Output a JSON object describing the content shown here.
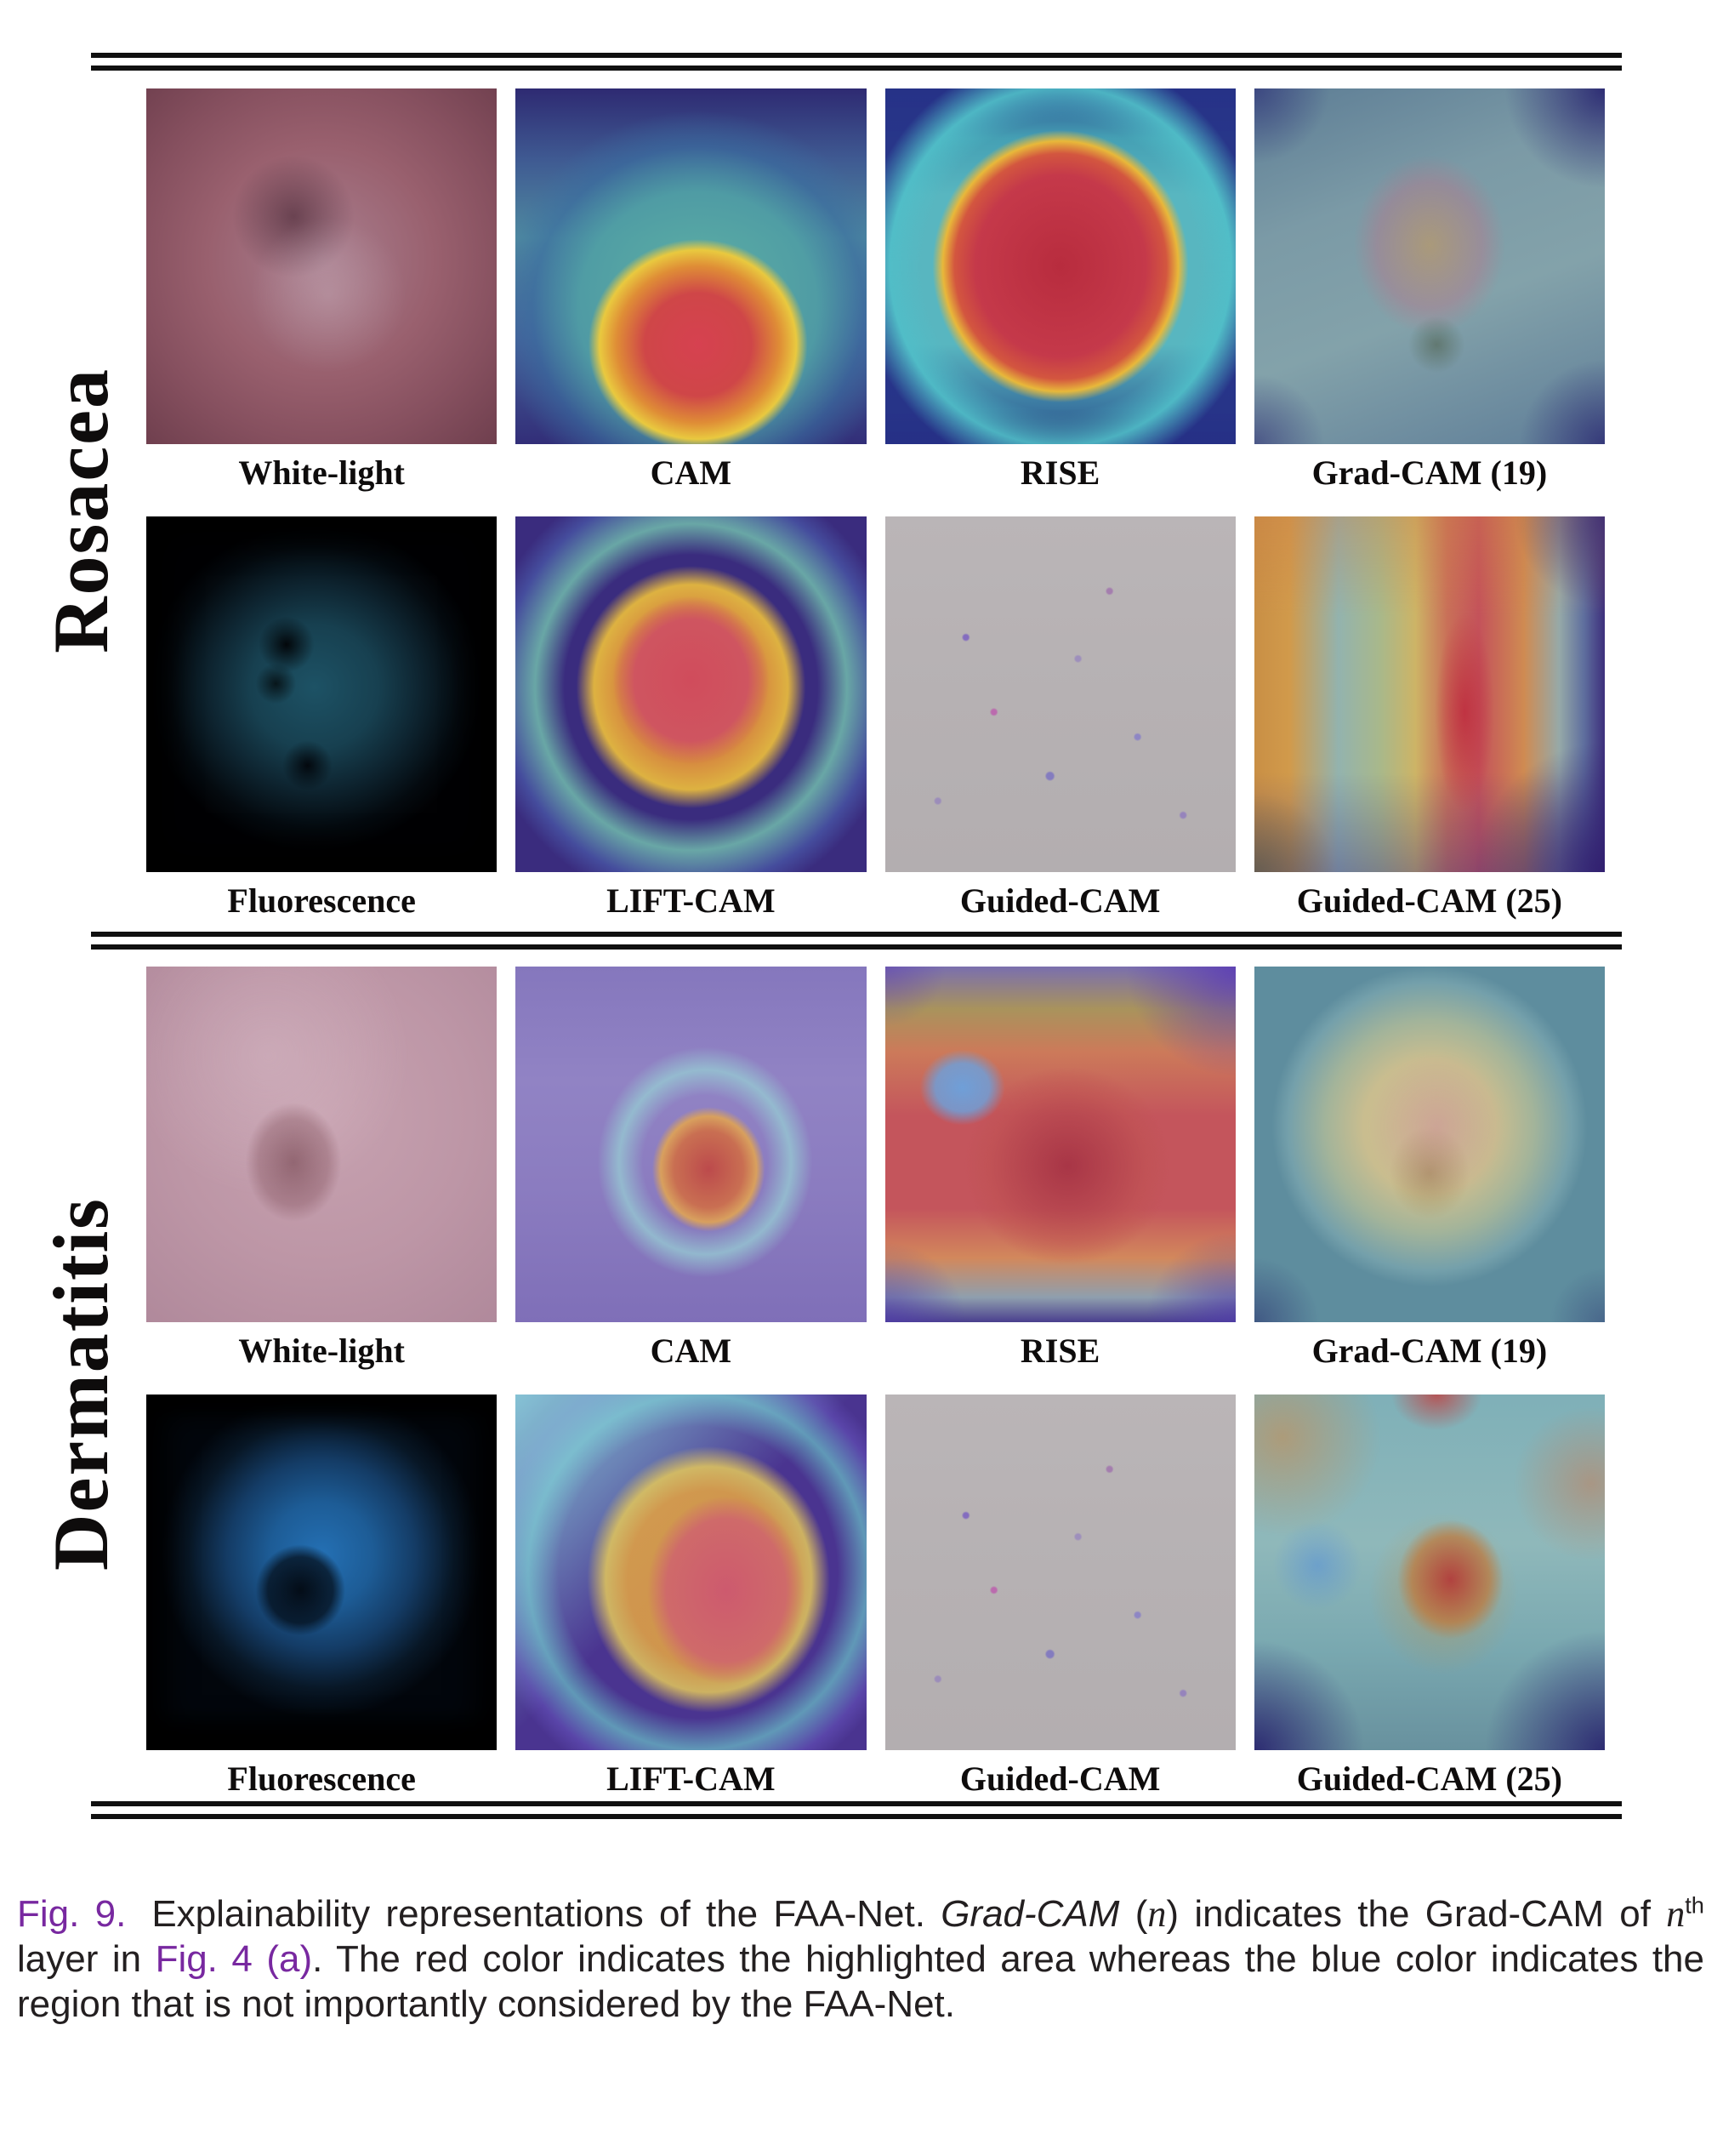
{
  "sections": [
    {
      "label": "Rosacea",
      "rows": [
        {
          "cells": [
            "White-light",
            "CAM",
            "RISE",
            "Grad-CAM (19)"
          ]
        },
        {
          "cells": [
            "Fluorescence",
            "LIFT-CAM",
            "Guided-CAM",
            "Guided-CAM (25)"
          ]
        }
      ]
    },
    {
      "label": "Dermatitis",
      "rows": [
        {
          "cells": [
            "White-light",
            "CAM",
            "RISE",
            "Grad-CAM (19)"
          ]
        },
        {
          "cells": [
            "Fluorescence",
            "LIFT-CAM",
            "Guided-CAM",
            "Guided-CAM (25)"
          ]
        }
      ]
    }
  ],
  "caption": {
    "fig_label": "Fig. 9.",
    "intro": "Explainability representations of the FAA-Net. ",
    "gradcam_italic": "Grad-CAM",
    "paren_open": " (",
    "n_italic": "n",
    "paren_close": ")",
    "middle": " indicates the Grad-CAM of ",
    "n2": "n",
    "sup": "th",
    "layer_in": " layer in ",
    "fig4_ref": "Fig. 4 (a)",
    "tail": ". The red color indicates the highlighted area whereas the blue color indicates the region that is not importantly considered by the FAA-Net."
  },
  "colors": {
    "caption_accent": "#7828A0",
    "text": "#231f20",
    "rule": "#101010"
  }
}
